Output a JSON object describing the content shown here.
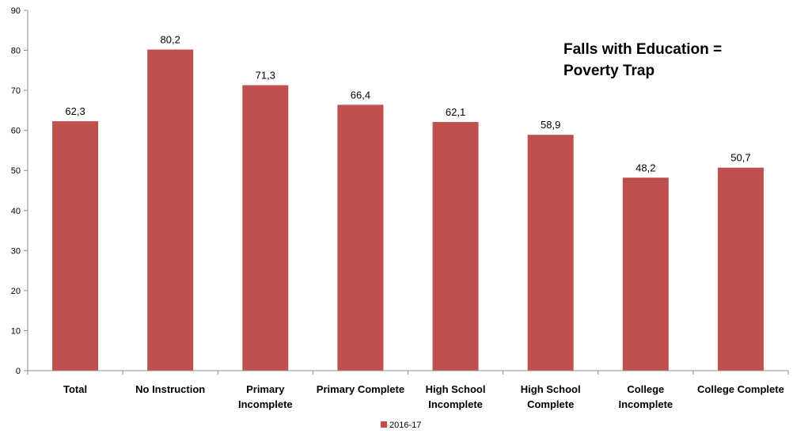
{
  "chart_data": {
    "type": "bar",
    "categories": [
      [
        "Total"
      ],
      [
        "No Instruction"
      ],
      [
        "Primary",
        "Incomplete"
      ],
      [
        "Primary Complete"
      ],
      [
        "High School",
        "Incomplete"
      ],
      [
        "High School",
        "Complete"
      ],
      [
        "College",
        "Incomplete"
      ],
      [
        "College Complete"
      ]
    ],
    "series": [
      {
        "name": "2016-17",
        "values": [
          62.3,
          80.2,
          71.3,
          66.4,
          62.1,
          58.9,
          48.2,
          50.7
        ],
        "value_labels": [
          "62,3",
          "80,2",
          "71,3",
          "66,4",
          "62,1",
          "58,9",
          "48,2",
          "50,7"
        ],
        "color": "#c0504d"
      }
    ],
    "ylim": [
      0,
      90
    ],
    "yticks": [
      "0",
      "10",
      "20",
      "30",
      "40",
      "50",
      "60",
      "70",
      "80",
      "90"
    ],
    "ytick_values": [
      0,
      10,
      20,
      30,
      40,
      50,
      60,
      70,
      80,
      90
    ],
    "grid": false,
    "legend_position": "bottom",
    "annotation": [
      "Falls with Education =",
      "Poverty Trap"
    ]
  }
}
